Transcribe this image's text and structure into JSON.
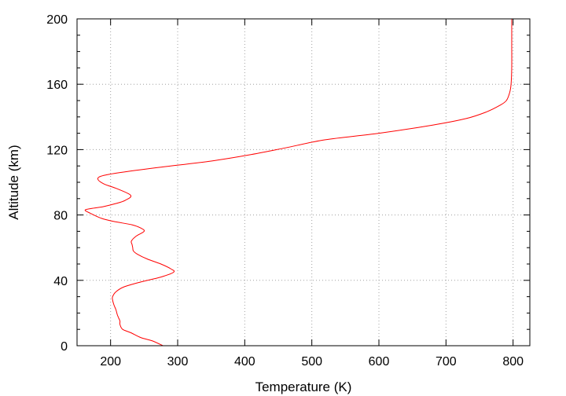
{
  "chart_data": {
    "type": "line",
    "title": "",
    "xlabel": "Temperature (K)",
    "ylabel": "Altitude (km)",
    "xlim": [
      150,
      825
    ],
    "ylim": [
      0,
      200
    ],
    "xticks": [
      200,
      300,
      400,
      500,
      600,
      700,
      800
    ],
    "yticks": [
      0,
      40,
      80,
      120,
      160,
      200
    ],
    "minor_yticks": [
      10,
      20,
      30,
      50,
      60,
      70,
      90,
      100,
      110,
      130,
      140,
      150,
      170,
      180,
      190
    ],
    "grid": true,
    "legend": "none",
    "line_color": "#ff0000",
    "series": [
      {
        "x": [
          278,
          262,
          245,
          230,
          218,
          214,
          214,
          212,
          210,
          208,
          205,
          203,
          203,
          208,
          220,
          245,
          275,
          294,
          290,
          275,
          255,
          240,
          234,
          233,
          232,
          231,
          238,
          250,
          245,
          232,
          205,
          186,
          170,
          162,
          172,
          188,
          208,
          222,
          230,
          210,
          190,
          181,
          188,
          215,
          270,
          350,
          410,
          460,
          520,
          600,
          680,
          730,
          760,
          780,
          790,
          795,
          797,
          798,
          798,
          798
        ],
        "y": [
          0,
          3,
          5,
          8,
          10,
          13,
          15,
          17,
          19,
          22,
          25,
          28,
          30,
          33,
          36,
          39,
          42,
          45,
          47,
          50,
          53,
          56,
          58,
          60,
          62,
          64,
          67,
          70,
          72,
          74,
          76,
          78,
          81,
          83,
          84,
          85,
          87,
          89,
          92,
          96,
          99,
          102,
          104,
          106,
          109,
          113,
          117,
          121,
          126,
          130,
          135,
          139,
          143,
          147,
          150,
          155,
          160,
          170,
          185,
          200
        ]
      }
    ]
  }
}
